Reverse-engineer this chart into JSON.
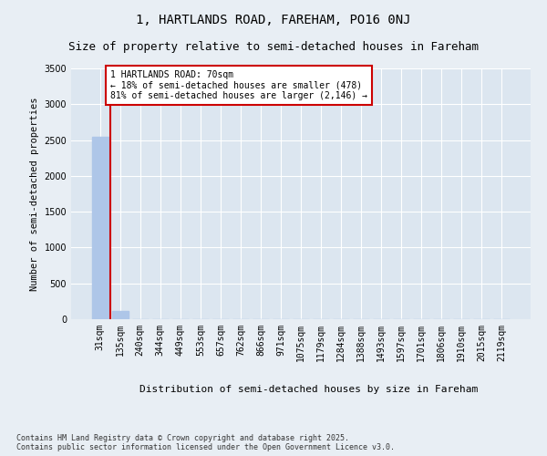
{
  "title1": "1, HARTLANDS ROAD, FAREHAM, PO16 0NJ",
  "title2": "Size of property relative to semi-detached houses in Fareham",
  "xlabel": "Distribution of semi-detached houses by size in Fareham",
  "ylabel": "Number of semi-detached properties",
  "categories": [
    "31sqm",
    "135sqm",
    "240sqm",
    "344sqm",
    "449sqm",
    "553sqm",
    "657sqm",
    "762sqm",
    "866sqm",
    "971sqm",
    "1075sqm",
    "1179sqm",
    "1284sqm",
    "1388sqm",
    "1493sqm",
    "1597sqm",
    "1701sqm",
    "1806sqm",
    "1910sqm",
    "2015sqm",
    "2119sqm"
  ],
  "values": [
    2540,
    110,
    0,
    0,
    0,
    0,
    0,
    0,
    0,
    0,
    0,
    0,
    0,
    0,
    0,
    0,
    0,
    0,
    0,
    0,
    0
  ],
  "bar_color": "#aec6e8",
  "annotation_box_color": "#cc0000",
  "annotation_title": "1 HARTLANDS ROAD: 70sqm",
  "annotation_line1": "← 18% of semi-detached houses are smaller (478)",
  "annotation_line2": "81% of semi-detached houses are larger (2,146) →",
  "vline_color": "#cc0000",
  "ylim": [
    0,
    3500
  ],
  "yticks": [
    0,
    500,
    1000,
    1500,
    2000,
    2500,
    3000,
    3500
  ],
  "background_color": "#e8eef4",
  "plot_bg_color": "#dce6f0",
  "grid_color": "#ffffff",
  "footer": "Contains HM Land Registry data © Crown copyright and database right 2025.\nContains public sector information licensed under the Open Government Licence v3.0.",
  "title1_fontsize": 10,
  "title2_fontsize": 9,
  "xlabel_fontsize": 8,
  "ylabel_fontsize": 7.5,
  "tick_fontsize": 7,
  "annotation_fontsize": 7,
  "footer_fontsize": 6
}
